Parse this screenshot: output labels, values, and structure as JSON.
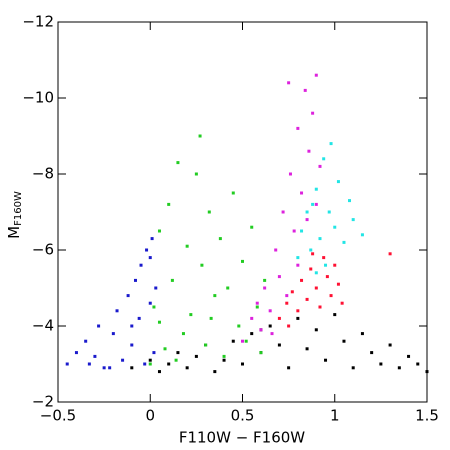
{
  "chart_data": {
    "type": "scatter",
    "xlabel": "F110W − F160W",
    "ylabel_main": "M",
    "ylabel_subscript": "F160W",
    "xlim": [
      -0.5,
      1.5
    ],
    "xticks": [
      {
        "value": -0.5,
        "label": "−0.5"
      },
      0,
      0.5,
      1,
      1.5
    ],
    "ylim": [
      -2,
      -12
    ],
    "yticks": [
      {
        "value": -12,
        "label": "−12"
      },
      {
        "value": -10,
        "label": "−10"
      },
      {
        "value": -8,
        "label": "−8"
      },
      {
        "value": -6,
        "label": "−6"
      },
      {
        "value": -4,
        "label": "−4"
      },
      {
        "value": -2,
        "label": "−2"
      }
    ],
    "series": [
      {
        "color": "#000000",
        "x": [
          -0.1,
          0,
          0.05,
          0.1,
          0.15,
          0.2,
          0.25,
          0.3,
          0.35,
          0.4,
          0.45,
          0.5,
          0.55,
          0.6,
          0.65,
          0.7,
          0.75,
          0.8,
          0.85,
          0.9,
          0.95,
          1.0,
          1.05,
          1.1,
          1.15,
          1.2,
          1.25,
          1.3,
          1.35,
          1.4,
          1.45,
          1.5,
          0.92,
          0.6
        ],
        "y": [
          -2.9,
          -3.1,
          -2.8,
          -3.0,
          -3.3,
          -2.9,
          -3.2,
          -3.5,
          -2.8,
          -3.1,
          -3.6,
          -3.0,
          -3.8,
          -3.3,
          -4.0,
          -3.5,
          -2.9,
          -4.2,
          -3.4,
          -3.9,
          -3.1,
          -4.3,
          -3.6,
          -2.9,
          -3.8,
          -3.3,
          -3.0,
          -3.5,
          -2.9,
          -3.2,
          -3.0,
          -2.8,
          -4.5,
          -3.9
        ]
      },
      {
        "color": "#1a1acc",
        "x": [
          -0.45,
          -0.4,
          -0.35,
          -0.3,
          -0.28,
          -0.25,
          -0.2,
          -0.18,
          -0.15,
          -0.12,
          -0.1,
          -0.08,
          -0.06,
          -0.05,
          -0.03,
          -0.02,
          0,
          0.01,
          0.02,
          0.03,
          -0.22,
          -0.33,
          0.0,
          -0.1
        ],
        "y": [
          -3.0,
          -3.3,
          -3.6,
          -3.2,
          -4.0,
          -2.9,
          -3.8,
          -4.4,
          -3.1,
          -4.8,
          -3.5,
          -5.2,
          -4.2,
          -5.6,
          -3.0,
          -6.0,
          -4.6,
          -6.3,
          -3.3,
          -5.0,
          -2.9,
          -3.0,
          -5.8,
          -4.0
        ]
      },
      {
        "color": "#22cc22",
        "x": [
          0,
          0.02,
          0.05,
          0.08,
          0.1,
          0.12,
          0.15,
          0.18,
          0.2,
          0.22,
          0.25,
          0.28,
          0.3,
          0.32,
          0.35,
          0.38,
          0.4,
          0.42,
          0.45,
          0.48,
          0.5,
          0.52,
          0.55,
          0.58,
          0.6,
          0.62,
          0.27,
          0.05,
          0.14,
          0.33
        ],
        "y": [
          -3.0,
          -4.5,
          -6.5,
          -3.4,
          -7.2,
          -5.2,
          -8.3,
          -3.8,
          -6.1,
          -4.3,
          -8.0,
          -5.6,
          -3.5,
          -7.0,
          -4.8,
          -6.3,
          -3.2,
          -5.0,
          -7.5,
          -4.0,
          -5.7,
          -3.6,
          -6.6,
          -4.5,
          -3.3,
          -5.2,
          -9.0,
          -4.1,
          -3.1,
          -4.2
        ]
      },
      {
        "color": "#dd22dd",
        "x": [
          0.5,
          0.55,
          0.6,
          0.62,
          0.65,
          0.68,
          0.7,
          0.72,
          0.74,
          0.76,
          0.78,
          0.8,
          0.8,
          0.82,
          0.84,
          0.85,
          0.86,
          0.88,
          0.9,
          0.9,
          0.92,
          0.75,
          0.66,
          0.58
        ],
        "y": [
          -3.6,
          -4.2,
          -3.9,
          -5.0,
          -4.4,
          -6.0,
          -5.3,
          -7.0,
          -4.8,
          -8.0,
          -6.5,
          -9.2,
          -5.6,
          -7.5,
          -10.2,
          -6.8,
          -8.6,
          -9.6,
          -7.2,
          -10.6,
          -8.2,
          -10.4,
          -3.8,
          -4.6
        ]
      },
      {
        "color": "#22e5e5",
        "x": [
          0.8,
          0.82,
          0.85,
          0.87,
          0.9,
          0.92,
          0.94,
          0.95,
          0.97,
          1.0,
          1.02,
          1.05,
          1.08,
          1.1,
          0.98,
          0.9,
          1.15,
          0.88
        ],
        "y": [
          -5.8,
          -6.5,
          -7.0,
          -6.0,
          -7.6,
          -6.3,
          -8.4,
          -5.6,
          -7.0,
          -6.6,
          -7.8,
          -6.2,
          -7.3,
          -6.8,
          -8.8,
          -5.4,
          -6.4,
          -7.2
        ]
      },
      {
        "color": "#ff1133",
        "x": [
          0.7,
          0.74,
          0.77,
          0.8,
          0.82,
          0.85,
          0.87,
          0.9,
          0.92,
          0.94,
          0.96,
          0.98,
          1.0,
          1.02,
          1.04,
          0.75,
          0.88,
          1.3
        ],
        "y": [
          -4.2,
          -4.6,
          -4.9,
          -4.4,
          -5.2,
          -4.7,
          -5.5,
          -5.0,
          -4.5,
          -5.8,
          -5.3,
          -4.8,
          -5.6,
          -5.1,
          -4.6,
          -4.0,
          -5.9,
          -5.9
        ]
      }
    ]
  }
}
